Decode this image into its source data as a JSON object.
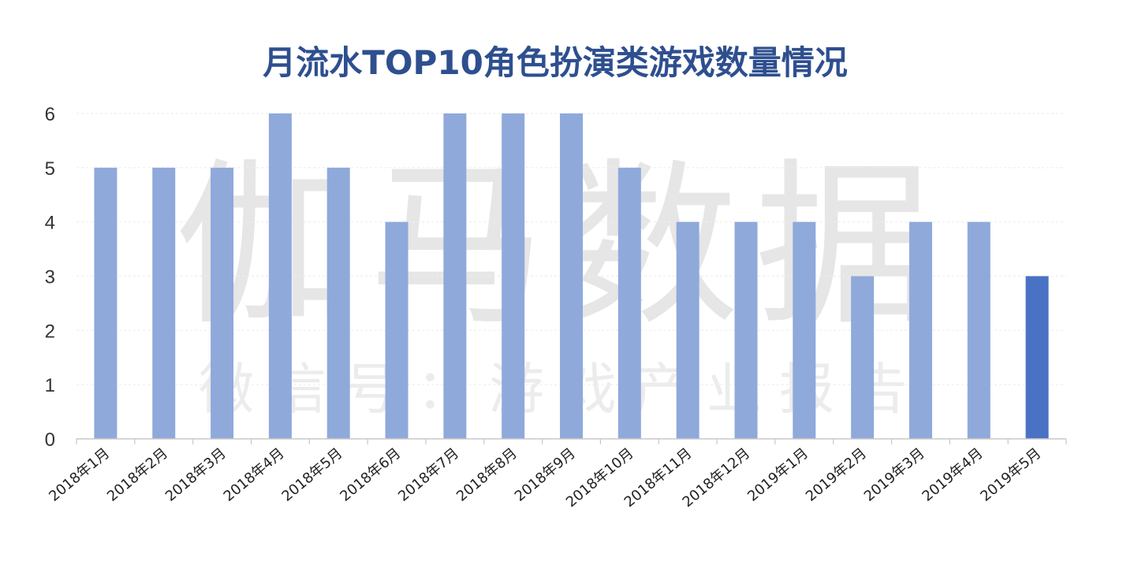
{
  "chart_data": {
    "type": "bar",
    "title": "月流水TOP10角色扮演类游戏数量情况",
    "xlabel": "",
    "ylabel": "",
    "categories": [
      "2018年1月",
      "2018年2月",
      "2018年3月",
      "2018年4月",
      "2018年5月",
      "2018年6月",
      "2018年7月",
      "2018年8月",
      "2018年9月",
      "2018年10月",
      "2018年11月",
      "2018年12月",
      "2019年1月",
      "2019年2月",
      "2019年3月",
      "2019年4月",
      "2019年5月"
    ],
    "values": [
      5,
      5,
      5,
      6,
      5,
      4,
      6,
      6,
      6,
      5,
      4,
      4,
      4,
      3,
      4,
      4,
      3
    ],
    "ylim": [
      0,
      6
    ],
    "yticks": [
      "0",
      "1",
      "2",
      "3",
      "4",
      "5",
      "6"
    ],
    "grid": true,
    "legend": "none",
    "colors": {
      "bar": "#8fa9db",
      "highlight_bar": "#4a72c4",
      "title": "#2e4f8f",
      "grid": "#eeeeee"
    },
    "highlight_index": 16
  },
  "watermark": {
    "main": "伽马数据",
    "sub": "微信号：游戏产业报告"
  }
}
